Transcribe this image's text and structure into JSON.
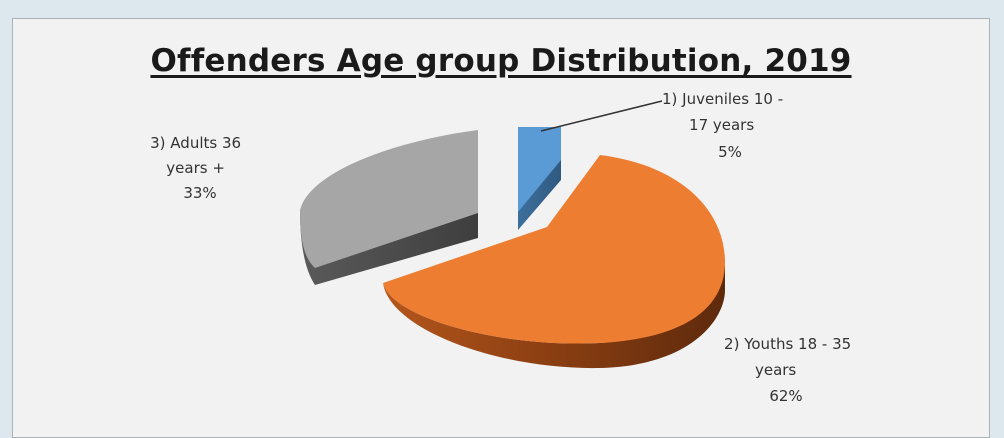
{
  "chart_data": {
    "type": "pie",
    "title": "Offenders Age group Distribution, 2019",
    "style": "3d-exploded",
    "slices": [
      {
        "name": "1) Juveniles 10 - 17 years",
        "value": 5,
        "value_label": "5%",
        "color": "#5b9bd5",
        "label_lines": [
          "1) Juveniles 10 -",
          "17 years",
          "5%"
        ]
      },
      {
        "name": "2) Youths 18 - 35 years",
        "value": 62,
        "value_label": "62%",
        "color": "#ed7d31",
        "label_lines": [
          "2) Youths 18 - 35",
          "years",
          "62%"
        ]
      },
      {
        "name": "3) Adults 36 years +",
        "value": 33,
        "value_label": "33%",
        "color": "#a5a5a5",
        "label_lines": [
          "3) Adults 36",
          "years +",
          "33%"
        ]
      }
    ]
  }
}
